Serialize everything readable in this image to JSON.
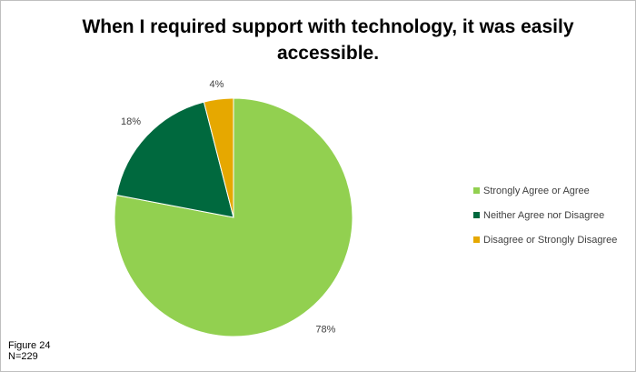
{
  "chart_data": {
    "type": "pie",
    "title": "When I required support with technology, it was easily accessible.",
    "categories": [
      "Strongly Agree or Agree",
      "Neither Agree nor Disagree",
      "Disagree or Strongly Disagree"
    ],
    "values": [
      78,
      18,
      4
    ],
    "data_labels": [
      "78%",
      "18%",
      "4%"
    ],
    "colors": [
      "#92d050",
      "#00693e",
      "#e6a800"
    ],
    "legend_position": "right"
  },
  "caption": {
    "figure": "Figure 24",
    "n": "N=229"
  }
}
